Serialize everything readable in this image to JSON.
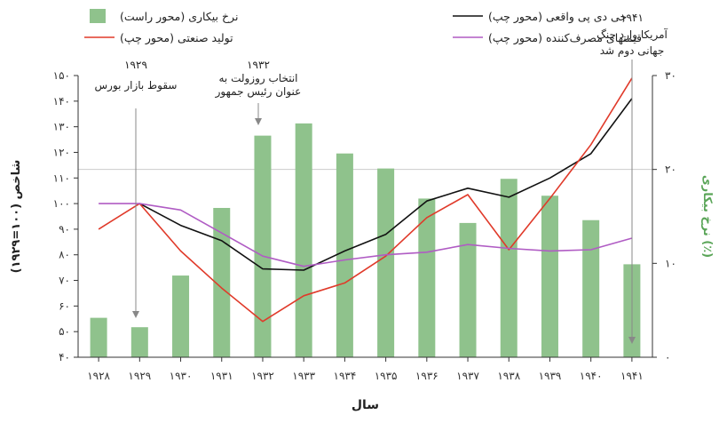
{
  "chart_data": {
    "type": "bar+line",
    "xlabel": "سال",
    "ylabel_left": "شاخص (۱۰۰=۱۹۲۹)",
    "ylabel_right": "نرخ بیکاری (٪)",
    "categories": [
      "1928",
      "1929",
      "1930",
      "1931",
      "1932",
      "1933",
      "1934",
      "1935",
      "1936",
      "1937",
      "1938",
      "1939",
      "1940",
      "1941"
    ],
    "category_labels": [
      "۱۹۲۸",
      "۱۹۲۹",
      "۱۹۳۰",
      "۱۹۳۱",
      "۱۹۳۲",
      "۱۹۳۳",
      "۱۹۳۴",
      "۱۹۳۵",
      "۱۹۳۶",
      "۱۹۳۷",
      "۱۹۳۸",
      "۱۹۳۹",
      "۱۹۴۰",
      "۱۹۴۱"
    ],
    "left_axis": {
      "ylim": [
        40,
        150
      ],
      "ticks": [
        40,
        50,
        60,
        70,
        80,
        90,
        100,
        110,
        120,
        130,
        140,
        150
      ],
      "tick_labels": [
        "۴۰",
        "۵۰",
        "۶۰",
        "۷۰",
        "۸۰",
        "۹۰",
        "۱۰۰",
        "۱۱۰",
        "۱۲۰",
        "۱۳۰",
        "۱۴۰",
        "۱۵۰"
      ]
    },
    "right_axis": {
      "ylim": [
        0,
        30
      ],
      "ticks": [
        0,
        10,
        20,
        30
      ],
      "tick_labels": [
        "۰",
        "۱۰",
        "۲۰",
        "۳۰"
      ]
    },
    "series": [
      {
        "name": "نرخ بیکاری (محور راست)",
        "kind": "bar",
        "axis": "right",
        "color": "#8fc28c",
        "values": [
          4.2,
          3.2,
          8.7,
          15.9,
          23.6,
          24.9,
          21.7,
          20.1,
          16.9,
          14.3,
          19.0,
          17.2,
          14.6,
          9.9
        ]
      },
      {
        "name": "جی دی پی واقعی (محور چپ)",
        "kind": "line",
        "axis": "left",
        "color": "#111111",
        "values": [
          null,
          100,
          91.5,
          85.5,
          74.5,
          74,
          81.5,
          88,
          101,
          106,
          102.5,
          110,
          119.5,
          141
        ]
      },
      {
        "name": "تولید صنعتی (محور چپ)",
        "kind": "line",
        "axis": "left",
        "color": "#e03a2a",
        "values": [
          90,
          100,
          81.5,
          67,
          54,
          64,
          69,
          79.5,
          94.5,
          103.5,
          82,
          102,
          123,
          149
        ]
      },
      {
        "name": "قیمتهای مصرف‌کننده (محور چپ)",
        "kind": "line",
        "axis": "left",
        "color": "#b05cc4",
        "values": [
          100,
          100,
          97.5,
          88.5,
          79.5,
          75.5,
          78,
          80,
          81,
          84,
          82.5,
          81.5,
          82,
          86.5
        ]
      }
    ],
    "annotations": [
      {
        "id": "crash",
        "year": "1929",
        "lines": [
          "۱۹۲۹",
          "سقوط بازار بورس"
        ]
      },
      {
        "id": "roosevelt",
        "year": "1932",
        "lines": [
          "۱۹۳۲",
          "انتخاب روزولت به",
          "عنوان رئیس جمهور"
        ]
      },
      {
        "id": "war",
        "year": "1941",
        "lines": [
          "۱۹۴۱",
          "آمریکا وارد جنگ",
          "جهانی دوم شد"
        ]
      }
    ],
    "legend_position": "top",
    "grid": "single horizontal reference line"
  }
}
